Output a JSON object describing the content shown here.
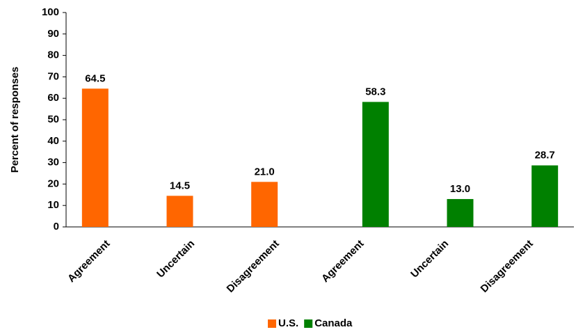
{
  "chart_data": {
    "type": "bar",
    "y_label": "Percent of responses",
    "categories": [
      "Agreement",
      "Uncertain",
      "Disagreement",
      "Agreement",
      "Uncertain",
      "Disagreement"
    ],
    "series": [
      {
        "name": "U.S.",
        "color": "#ff6600",
        "values": [
          64.5,
          14.5,
          21,
          null,
          null,
          null
        ],
        "value_labels": [
          "64.5",
          "14.5",
          "21.0",
          null,
          null,
          null
        ]
      },
      {
        "name": "Canada",
        "color": "#008000",
        "values": [
          null,
          null,
          null,
          58.3,
          13,
          28.7
        ],
        "value_labels": [
          null,
          null,
          null,
          "58.3",
          "13.0",
          "28.7"
        ]
      }
    ],
    "ylim": [
      0,
      100
    ],
    "yticks": [
      0,
      10,
      20,
      30,
      40,
      50,
      60,
      70,
      80,
      90,
      100
    ],
    "grid": false,
    "legend": "bottom"
  }
}
